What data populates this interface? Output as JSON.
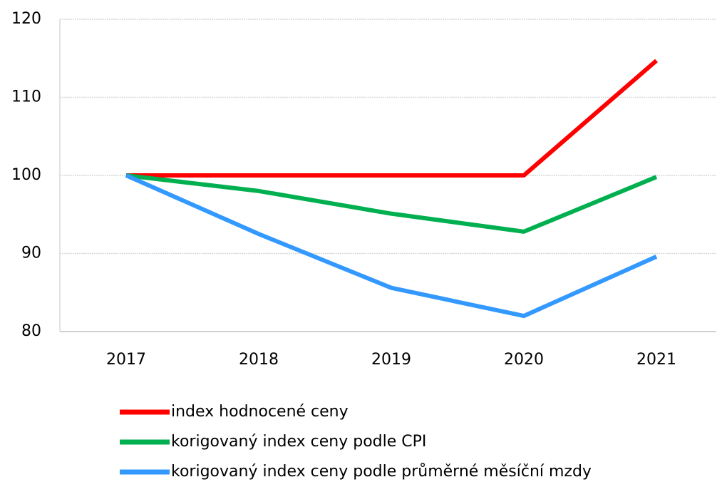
{
  "chart_data": {
    "type": "line",
    "categories": [
      "2017",
      "2018",
      "2019",
      "2020",
      "2021"
    ],
    "series": [
      {
        "name": "index hodnocené ceny",
        "color": "#ff0000",
        "values": [
          100,
          100,
          100,
          100,
          114.7
        ]
      },
      {
        "name": "korigovaný index ceny podle CPI",
        "color": "#00b050",
        "values": [
          100,
          98.0,
          95.1,
          92.8,
          99.8
        ]
      },
      {
        "name": "korigovaný index ceny podle průměrné měsíční mzdy",
        "color": "#3399ff",
        "values": [
          100,
          92.5,
          85.6,
          82.0,
          89.6
        ]
      }
    ],
    "ylim": [
      80,
      120
    ],
    "yticks": [
      80,
      90,
      100,
      110,
      120
    ],
    "grid": true,
    "legend": "bottom"
  }
}
